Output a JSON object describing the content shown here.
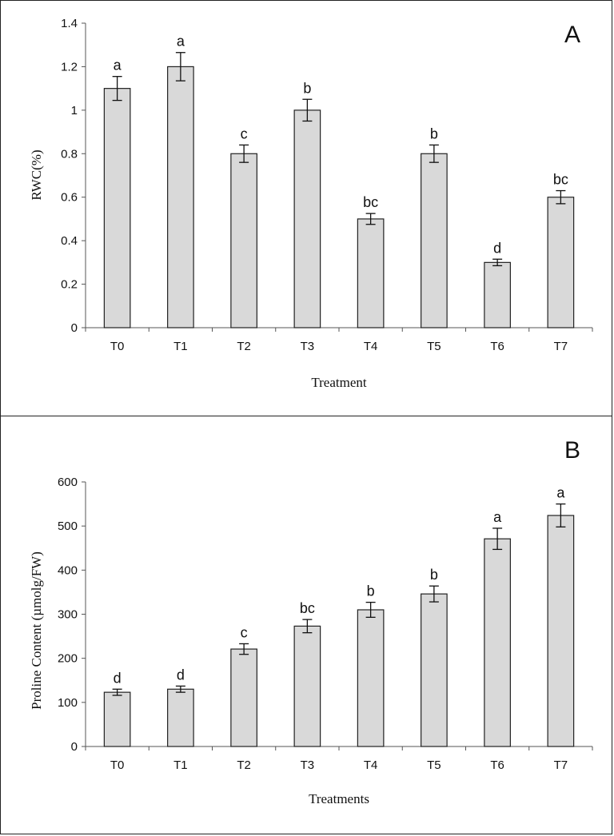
{
  "chart_data": [
    {
      "panel_label": "A",
      "type": "bar",
      "categories": [
        "T0",
        "T1",
        "T2",
        "T3",
        "T4",
        "T5",
        "T6",
        "T7"
      ],
      "values": [
        1.1,
        1.2,
        0.8,
        1.0,
        0.5,
        0.8,
        0.3,
        0.6
      ],
      "errors": [
        0.055,
        0.065,
        0.04,
        0.05,
        0.025,
        0.04,
        0.015,
        0.03
      ],
      "significance": [
        "a",
        "a",
        "c",
        "b",
        "bc",
        "b",
        "d",
        "bc"
      ],
      "xlabel": "Treatment",
      "ylabel": "RWC(%)",
      "ylim": [
        0,
        1.4
      ],
      "yticks": [
        0,
        0.2,
        0.4,
        0.6,
        0.8,
        1,
        1.2,
        1.4
      ],
      "ytick_labels": [
        "0",
        "0.2",
        "0.4",
        "0.6",
        "0.8",
        "1",
        "1.2",
        "1.4"
      ],
      "grid": false,
      "bar_color": "#d9d9d9"
    },
    {
      "panel_label": "B",
      "type": "bar",
      "categories": [
        "T0",
        "T1",
        "T2",
        "T3",
        "T4",
        "T5",
        "T6",
        "T7"
      ],
      "values": [
        123,
        130,
        221,
        273,
        310,
        346,
        471,
        524
      ],
      "errors": [
        7,
        7,
        12,
        15,
        17,
        18,
        24,
        26
      ],
      "significance": [
        "d",
        "d",
        "c",
        "bc",
        "b",
        "b",
        "a",
        "a"
      ],
      "xlabel": "Treatments",
      "ylabel": "Proline Content (µmolg/FW)",
      "ylim": [
        0,
        600
      ],
      "yticks": [
        0,
        100,
        200,
        300,
        400,
        500,
        600
      ],
      "ytick_labels": [
        "0",
        "100",
        "200",
        "300",
        "400",
        "500",
        "600"
      ],
      "grid": false,
      "bar_color": "#d9d9d9"
    }
  ]
}
